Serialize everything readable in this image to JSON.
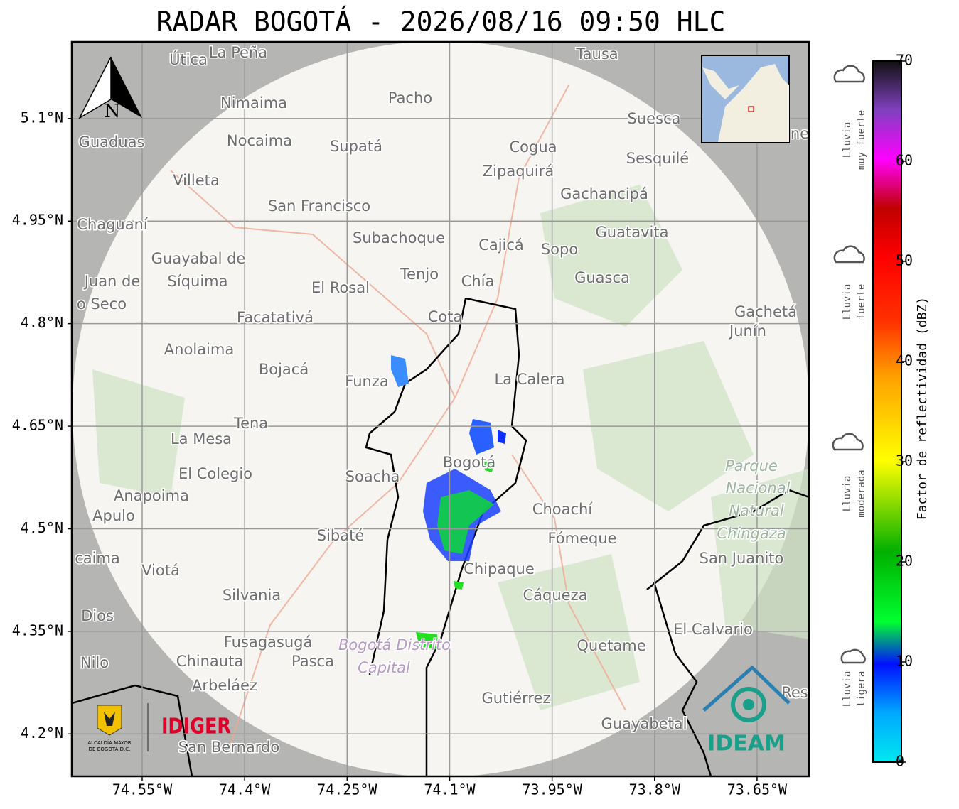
{
  "title": "RADAR BOGOTÁ - 2026/08/16 09:50 HLC",
  "map": {
    "xlim": [
      -74.653,
      -73.574
    ],
    "ylim": [
      4.138,
      5.212
    ],
    "lat_ticks": [
      {
        "value": 5.1,
        "label": "5.1°N"
      },
      {
        "value": 4.95,
        "label": "4.95°N"
      },
      {
        "value": 4.8,
        "label": "4.8°N"
      },
      {
        "value": 4.65,
        "label": "4.65°N"
      },
      {
        "value": 4.5,
        "label": "4.5°N"
      },
      {
        "value": 4.35,
        "label": "4.35°N"
      },
      {
        "value": 4.2,
        "label": "4.2°N"
      }
    ],
    "lon_ticks": [
      {
        "value": -74.55,
        "label": "74.55°W"
      },
      {
        "value": -74.4,
        "label": "74.4°W"
      },
      {
        "value": -74.25,
        "label": "74.25°W"
      },
      {
        "value": -74.1,
        "label": "74.1°W"
      },
      {
        "value": -73.95,
        "label": "73.95°W"
      },
      {
        "value": -73.8,
        "label": "73.8°W"
      },
      {
        "value": -73.65,
        "label": "73.65°W"
      }
    ],
    "north": "N",
    "places": [
      "Útica",
      "La Peña",
      "Tausa",
      "Pacho",
      "Nimaima",
      "Guaduas",
      "Nocaima",
      "Supatá",
      "Cogua",
      "Suesca",
      "Sesquilé",
      "Zipaquirá",
      "Villeta",
      "Gachancipá",
      "San Francisco",
      "Chaguaní",
      "Guatavita",
      "Subachoque",
      "Cajicá",
      "Sopo",
      "Guayabal de",
      "Síquima",
      "Juan de",
      "o Seco",
      "Tenjo",
      "Chía",
      "Guasca",
      "El Rosal",
      "Facatativá",
      "Cota",
      "Gachetá",
      "Junín",
      "Anolaima",
      "Bojacá",
      "Funza",
      "La Calera",
      "Tena",
      "La Mesa",
      "Soacha",
      "Bogotá",
      "El Colegio",
      "Parque",
      "Nacional",
      "Natural",
      "Chingaza",
      "Anapoima",
      "Apulo",
      "Choachí",
      "Sibaté",
      "Fómeque",
      "San Juanito",
      "caima",
      "Viotá",
      "Chipaque",
      "Silvania",
      "Cáqueza",
      "Dios",
      "El Calvario",
      "Fusagasugá",
      "Bogotá Distrito",
      "Quetame",
      "Nilo",
      "Chinauta",
      "Pasca",
      "Capital",
      "Arbeláez",
      "Gutiérrez",
      "Res",
      "Guayabetal",
      "San Bernardo",
      "ne"
    ]
  },
  "colorbar": {
    "label": "Factor de reflectividad (dBZ)",
    "range": [
      0,
      70
    ],
    "ticks": [
      0,
      10,
      20,
      30,
      40,
      50,
      60,
      70
    ]
  },
  "rain_levels": [
    [
      "Lluvia",
      "muy fuerte"
    ],
    [
      "Lluvia",
      "fuerte"
    ],
    [
      "Lluvia",
      "moderada"
    ],
    [
      "Lluvia",
      "ligera"
    ]
  ],
  "logos": {
    "alcaldia": [
      "ALCALDÍA MAYOR",
      "DE BOGOTÁ D.C."
    ],
    "idiger": "IDIGER",
    "ideam": "IDEAM"
  }
}
